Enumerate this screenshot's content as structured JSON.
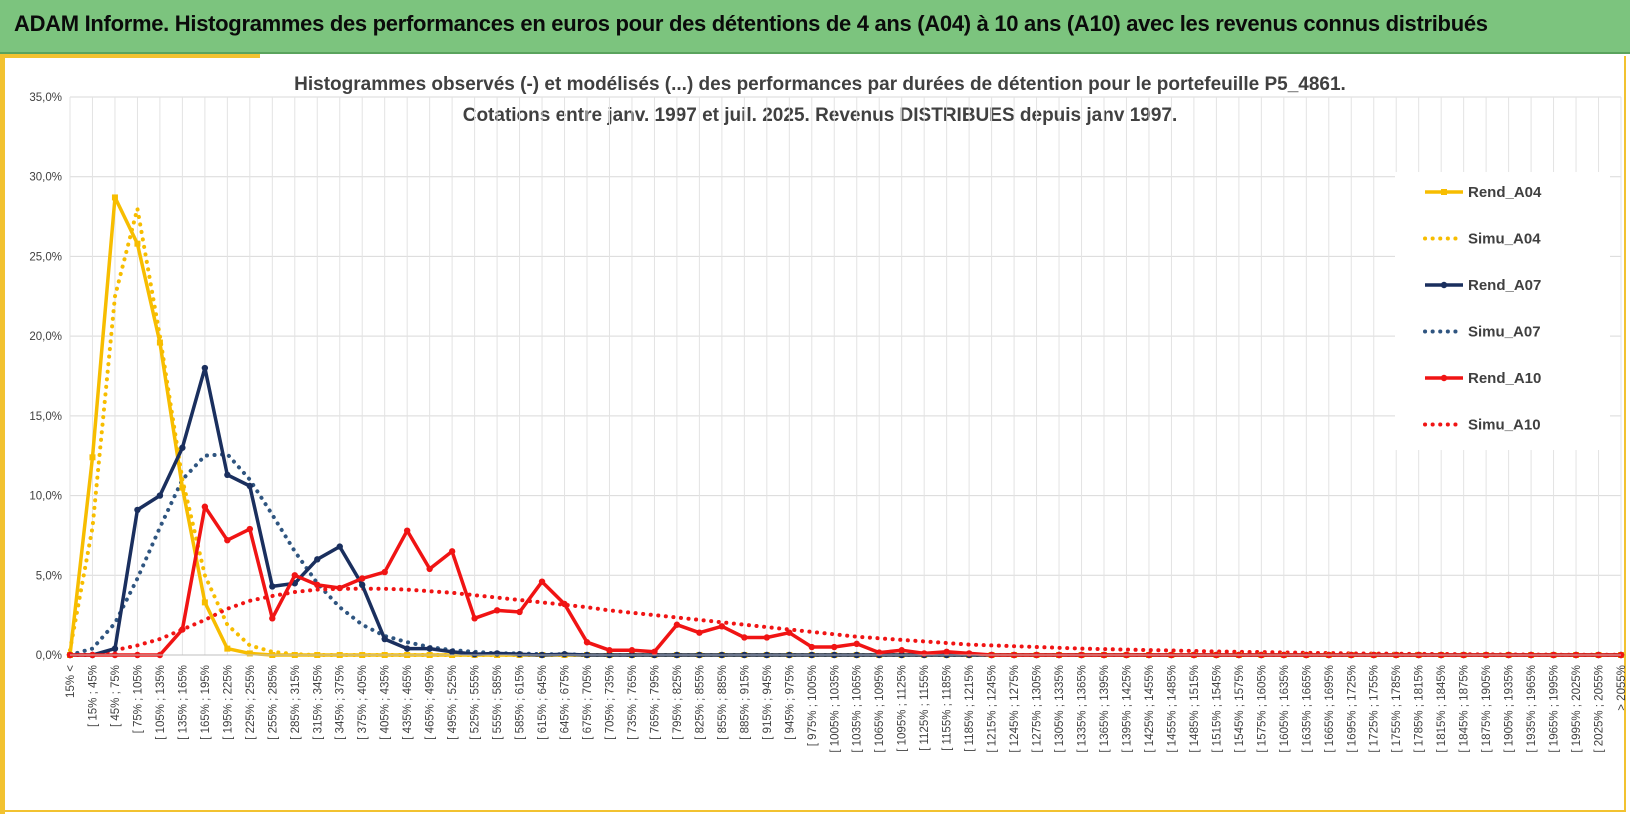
{
  "header": {
    "title": "ADAM Informe. Histogrammes des performances en euros pour des détentions de 4 ans (A04) à 10 ans (A10) avec les revenus connus distribués"
  },
  "colors": {
    "header_bg": "#7cc47e",
    "accent": "#f2c230",
    "a04": "#f7bd00",
    "a07": "#1a2f5e",
    "a07_simu": "#2f5580",
    "a10": "#f01414"
  },
  "chart_data": {
    "type": "line",
    "title": "Histogrammes observés (-) et modélisés (...) des performances par durées de détention pour le portefeuille P5_4861.",
    "subtitle": "Cotations entre janv. 1997 et juil. 2025. Revenus DISTRIBUES depuis janv 1997.",
    "xlabel": "",
    "ylabel": "",
    "ylim": [
      0,
      35
    ],
    "y_ticks": [
      "0,0%",
      "5,0%",
      "10,0%",
      "15,0%",
      "20,0%",
      "25,0%",
      "30,0%",
      "35,0%"
    ],
    "grid": true,
    "legend_position": "right",
    "categories": [
      "15% <",
      "[ 15% ; 45%",
      "[ 45% ; 75%",
      "[ 75% ; 105%",
      "[ 105% ; 135%",
      "[ 135% ; 165%",
      "[ 165% ; 195%",
      "[ 195% ; 225%",
      "[ 225% ; 255%",
      "[ 255% ; 285%",
      "[ 285% ; 315%",
      "[ 315% ; 345%",
      "[ 345% ; 375%",
      "[ 375% ; 405%",
      "[ 405% ; 435%",
      "[ 435% ; 465%",
      "[ 465% ; 495%",
      "[ 495% ; 525%",
      "[ 525% ; 555%",
      "[ 555% ; 585%",
      "[ 585% ; 615%",
      "[ 615% ; 645%",
      "[ 645% ; 675%",
      "[ 675% ; 705%",
      "[ 705% ; 735%",
      "[ 735% ; 765%",
      "[ 765% ; 795%",
      "[ 795% ; 825%",
      "[ 825% ; 855%",
      "[ 855% ; 885%",
      "[ 885% ; 915%",
      "[ 915% ; 945%",
      "[ 945% ; 975%",
      "[ 975% ; 1005%",
      "[ 1005% ; 1035%",
      "[ 1035% ; 1065%",
      "[ 1065% ; 1095%",
      "[ 1095% ; 1125%",
      "[ 1125% ; 1155%",
      "[ 1155% ; 1185%",
      "[ 1185% ; 1215%",
      "[ 1215% ; 1245%",
      "[ 1245% ; 1275%",
      "[ 1275% ; 1305%",
      "[ 1305% ; 1335%",
      "[ 1335% ; 1365%",
      "[ 1365% ; 1395%",
      "[ 1395% ; 1425%",
      "[ 1425% ; 1455%",
      "[ 1455% ; 1485%",
      "[ 1485% ; 1515%",
      "[ 1515% ; 1545%",
      "[ 1545% ; 1575%",
      "[ 1575% ; 1605%",
      "[ 1605% ; 1635%",
      "[ 1635% ; 1665%",
      "[ 1665% ; 1695%",
      "[ 1695% ; 1725%",
      "[ 1725% ; 1755%",
      "[ 1755% ; 1785%",
      "[ 1785% ; 1815%",
      "[ 1815% ; 1845%",
      "[ 1845% ; 1875%",
      "[ 1875% ; 1905%",
      "[ 1905% ; 1935%",
      "[ 1935% ; 1965%",
      "[ 1965% ; 1995%",
      "[ 1995% ; 2025%",
      "[ 2025% ; 2055%",
      "> 2055%"
    ],
    "series": [
      {
        "name": "Rend_A04",
        "style": "solid",
        "color": "#f7bd00",
        "values": [
          0,
          12.4,
          28.7,
          25.8,
          19.6,
          10.5,
          3.3,
          0.4,
          0.1,
          0,
          0,
          0,
          0,
          0,
          0,
          0,
          0,
          0,
          0,
          0,
          0,
          0,
          0,
          0,
          0,
          0,
          0,
          0,
          0,
          0,
          0,
          0,
          0,
          0,
          0,
          0,
          0,
          0,
          0,
          0,
          0,
          0,
          0,
          0,
          0,
          0,
          0,
          0,
          0,
          0,
          0,
          0,
          0,
          0,
          0,
          0,
          0,
          0,
          0,
          0,
          0,
          0,
          0,
          0,
          0,
          0,
          0,
          0,
          0,
          0
        ]
      },
      {
        "name": "Simu_A04",
        "style": "dotted",
        "color": "#f7bd00",
        "values": [
          0.3,
          8.0,
          22.5,
          28.0,
          20.0,
          11.0,
          5.0,
          1.9,
          0.6,
          0.2,
          0.05,
          0,
          0,
          0,
          0,
          0,
          0,
          0,
          0,
          0,
          0,
          0,
          0,
          0,
          0,
          0,
          0,
          0,
          0,
          0,
          0,
          0,
          0,
          0,
          0,
          0,
          0,
          0,
          0,
          0,
          0,
          0,
          0,
          0,
          0,
          0,
          0,
          0,
          0,
          0,
          0,
          0,
          0,
          0,
          0,
          0,
          0,
          0,
          0,
          0,
          0,
          0,
          0,
          0,
          0,
          0,
          0,
          0,
          0,
          0
        ]
      },
      {
        "name": "Rend_A07",
        "style": "solid",
        "color": "#1a2f5e",
        "values": [
          0,
          0,
          0.4,
          9.1,
          10.0,
          13.0,
          18.0,
          11.3,
          10.6,
          4.3,
          4.5,
          6.0,
          6.8,
          4.4,
          1.0,
          0.4,
          0.4,
          0.2,
          0.05,
          0.1,
          0.05,
          0,
          0.05,
          0,
          0,
          0,
          0,
          0,
          0,
          0,
          0,
          0,
          0,
          0,
          0,
          0,
          0,
          0,
          0,
          0,
          0,
          0,
          0,
          0,
          0,
          0,
          0,
          0,
          0,
          0,
          0,
          0,
          0,
          0,
          0,
          0,
          0,
          0,
          0,
          0,
          0,
          0,
          0,
          0,
          0,
          0,
          0,
          0,
          0,
          0
        ]
      },
      {
        "name": "Simu_A07",
        "style": "dotted",
        "color": "#2f5580",
        "values": [
          0,
          0.4,
          2.0,
          4.8,
          8.0,
          11.0,
          12.5,
          12.6,
          11.0,
          8.8,
          6.5,
          4.5,
          3.0,
          1.9,
          1.2,
          0.8,
          0.5,
          0.3,
          0.2,
          0.1,
          0.1,
          0.05,
          0.05,
          0,
          0,
          0,
          0,
          0,
          0,
          0,
          0,
          0,
          0,
          0,
          0,
          0,
          0,
          0,
          0,
          0,
          0,
          0,
          0,
          0,
          0,
          0,
          0,
          0,
          0,
          0,
          0,
          0,
          0,
          0,
          0,
          0,
          0,
          0,
          0,
          0,
          0,
          0,
          0,
          0,
          0,
          0,
          0,
          0,
          0,
          0
        ]
      },
      {
        "name": "Rend_A10",
        "style": "solid",
        "color": "#f01414",
        "values": [
          0,
          0,
          0,
          0,
          0,
          1.6,
          9.3,
          7.2,
          7.9,
          2.3,
          5.0,
          4.4,
          4.2,
          4.8,
          5.2,
          7.8,
          5.4,
          6.5,
          2.3,
          2.8,
          2.7,
          4.6,
          3.2,
          0.8,
          0.3,
          0.3,
          0.2,
          1.9,
          1.4,
          1.8,
          1.1,
          1.1,
          1.4,
          0.5,
          0.5,
          0.7,
          0.15,
          0.3,
          0.1,
          0.2,
          0.1,
          0,
          0,
          0,
          0,
          0,
          0,
          0,
          0,
          0,
          0,
          0,
          0,
          0,
          0,
          0,
          0,
          0,
          0,
          0,
          0,
          0,
          0,
          0,
          0,
          0,
          0,
          0,
          0,
          0
        ]
      },
      {
        "name": "Simu_A10",
        "style": "dotted",
        "color": "#f01414",
        "values": [
          0,
          0,
          0.3,
          0.6,
          1.0,
          1.6,
          2.2,
          2.9,
          3.4,
          3.7,
          3.95,
          4.1,
          4.15,
          4.15,
          4.15,
          4.1,
          4.0,
          3.9,
          3.75,
          3.6,
          3.45,
          3.3,
          3.15,
          3.0,
          2.8,
          2.65,
          2.5,
          2.35,
          2.2,
          2.05,
          1.9,
          1.75,
          1.6,
          1.45,
          1.3,
          1.15,
          1.05,
          0.95,
          0.85,
          0.75,
          0.65,
          0.6,
          0.55,
          0.5,
          0.45,
          0.4,
          0.37,
          0.34,
          0.31,
          0.28,
          0.25,
          0.22,
          0.2,
          0.18,
          0.16,
          0.14,
          0.12,
          0.1,
          0.09,
          0.08,
          0.07,
          0.06,
          0.05,
          0.04,
          0.03,
          0.03,
          0.02,
          0.02,
          0.01,
          0.01
        ]
      }
    ]
  }
}
